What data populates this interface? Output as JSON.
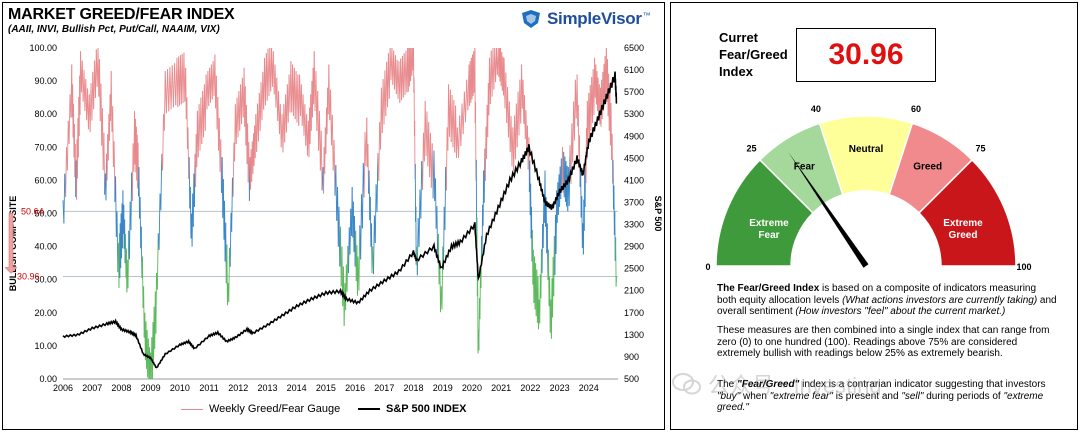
{
  "header": {
    "title": "MARKET GREED/FEAR INDEX",
    "subtitle": "(AAII, INVI, Bullish Pct, Put/Call, NAAIM, VIX)",
    "logo_text": "SimpleVisor",
    "logo_tm": "™"
  },
  "legend": {
    "gauge_label": "Weekly Greed/Fear Gauge",
    "sp500_label": "S&P 500 INDEX"
  },
  "annotations": {
    "level_high": "50.64",
    "level_low": "30.96"
  },
  "chart_data": {
    "type": "line",
    "title": "MARKET GREED/FEAR INDEX",
    "xlabel": "",
    "ylabel_left": "BULLISH COMPOSITE",
    "ylabel_right": "S&P 500",
    "ylim_left": [
      0,
      100
    ],
    "ylim_right": [
      500,
      6500
    ],
    "x_ticks": [
      "2006",
      "2007",
      "2008",
      "2009",
      "2010",
      "2011",
      "2012",
      "2013",
      "2014",
      "2015",
      "2016",
      "2017",
      "2018",
      "2019",
      "2020",
      "2021",
      "2022",
      "2023",
      "2024"
    ],
    "y_ticks_left": [
      "0.00",
      "10.00",
      "20.00",
      "30.00",
      "40.00",
      "50.00",
      "60.00",
      "70.00",
      "80.00",
      "90.00",
      "100.00"
    ],
    "y_ticks_right": [
      "500",
      "900",
      "1300",
      "1700",
      "2100",
      "2500",
      "2900",
      "3300",
      "3700",
      "4100",
      "4500",
      "4900",
      "5300",
      "5700",
      "6100",
      "6500"
    ],
    "horizontal_lines": [
      50.64,
      30.96
    ],
    "series": [
      {
        "name": "Weekly Greed/Fear Gauge",
        "axis": "left",
        "color_above_75": "#e8898c",
        "color_middle": "#3a86c8",
        "color_below_25": "#5cb85c",
        "x": [
          2006.0,
          2006.3,
          2006.45,
          2006.6,
          2006.9,
          2007.2,
          2007.45,
          2007.65,
          2007.9,
          2008.05,
          2008.2,
          2008.45,
          2008.6,
          2008.8,
          2009.0,
          2009.2,
          2009.5,
          2009.9,
          2010.2,
          2010.4,
          2010.6,
          2010.9,
          2011.2,
          2011.45,
          2011.65,
          2011.9,
          2012.2,
          2012.4,
          2012.6,
          2012.9,
          2013.2,
          2013.5,
          2013.8,
          2014.1,
          2014.4,
          2014.6,
          2014.9,
          2015.1,
          2015.4,
          2015.65,
          2015.9,
          2016.1,
          2016.4,
          2016.6,
          2016.9,
          2017.2,
          2017.5,
          2017.8,
          2018.0,
          2018.1,
          2018.4,
          2018.7,
          2018.95,
          2019.2,
          2019.5,
          2019.9,
          2020.1,
          2020.22,
          2020.4,
          2020.6,
          2020.9,
          2021.1,
          2021.4,
          2021.7,
          2021.95,
          2022.1,
          2022.3,
          2022.5,
          2022.7,
          2022.9,
          2023.1,
          2023.3,
          2023.6,
          2023.8,
          2023.95,
          2024.2,
          2024.4,
          2024.6,
          2024.8,
          2024.95
        ],
        "y": [
          50,
          90,
          60,
          92,
          78,
          95,
          58,
          88,
          35,
          50,
          28,
          72,
          60,
          15,
          2,
          25,
          85,
          88,
          90,
          45,
          75,
          85,
          90,
          58,
          25,
          78,
          88,
          60,
          72,
          88,
          95,
          75,
          90,
          85,
          70,
          90,
          60,
          90,
          52,
          22,
          50,
          28,
          75,
          35,
          82,
          95,
          88,
          92,
          100,
          35,
          78,
          62,
          20,
          80,
          72,
          90,
          95,
          8,
          55,
          88,
          99,
          92,
          70,
          88,
          65,
          30,
          20,
          58,
          18,
          50,
          62,
          55,
          88,
          42,
          78,
          90,
          80,
          92,
          70,
          31
        ]
      },
      {
        "name": "S&P 500 INDEX",
        "axis": "right",
        "color": "#000000",
        "x": [
          2006.0,
          2006.5,
          2007.0,
          2007.5,
          2007.8,
          2008.0,
          2008.3,
          2008.5,
          2008.75,
          2009.0,
          2009.2,
          2009.5,
          2010.0,
          2010.3,
          2010.5,
          2011.0,
          2011.3,
          2011.6,
          2011.9,
          2012.3,
          2012.5,
          2013.0,
          2013.5,
          2014.0,
          2014.5,
          2015.0,
          2015.5,
          2015.7,
          2016.1,
          2016.5,
          2017.0,
          2017.5,
          2018.0,
          2018.1,
          2018.7,
          2018.95,
          2019.3,
          2019.6,
          2020.1,
          2020.22,
          2020.5,
          2020.9,
          2021.3,
          2021.7,
          2021.95,
          2022.3,
          2022.5,
          2022.75,
          2023.0,
          2023.3,
          2023.6,
          2023.8,
          2024.0,
          2024.3,
          2024.6,
          2024.9,
          2024.95
        ],
        "y": [
          1270,
          1300,
          1420,
          1500,
          1540,
          1400,
          1350,
          1290,
          950,
          880,
          700,
          950,
          1120,
          1180,
          1050,
          1280,
          1340,
          1180,
          1250,
          1400,
          1330,
          1480,
          1650,
          1820,
          1950,
          2060,
          2090,
          1950,
          1880,
          2100,
          2280,
          2450,
          2800,
          2650,
          2900,
          2500,
          2900,
          2980,
          3300,
          2300,
          3100,
          3600,
          4100,
          4450,
          4700,
          4100,
          3700,
          3600,
          3900,
          4100,
          4500,
          4200,
          4800,
          5200,
          5600,
          6000,
          5500
        ]
      }
    ],
    "legend_position": "bottom"
  },
  "gauge": {
    "reading_label_line1": "Curret",
    "reading_label_line2": "Fear/Greed",
    "reading_label_line3": "Index",
    "reading_value": "30.96",
    "value": 30.96,
    "segments": [
      {
        "label_line1": "Extreme",
        "label_line2": "Fear",
        "from": 0,
        "to": 25,
        "color": "#3f9a3b"
      },
      {
        "label_line1": "Fear",
        "label_line2": "",
        "from": 25,
        "to": 40,
        "color": "#a5d99b"
      },
      {
        "label_line1": "Neutral",
        "label_line2": "",
        "from": 40,
        "to": 60,
        "color": "#ffff99"
      },
      {
        "label_line1": "Greed",
        "label_line2": "",
        "from": 60,
        "to": 75,
        "color": "#f08a8c"
      },
      {
        "label_line1": "Extreme",
        "label_line2": "Greed",
        "from": 75,
        "to": 100,
        "color": "#c8161b"
      }
    ],
    "tick_labels": [
      "0",
      "25",
      "40",
      "60",
      "75",
      "100"
    ]
  },
  "description": {
    "p1_bold": "The Fear/Greed Index",
    "p1_rest": " is based on a composite of indicators measuring both equity allocation levels ",
    "p1_italic1": "(What actions investors are currently taking)",
    "p1_mid": " and overall sentiment ",
    "p1_italic2": "(How investors \"feel\" about the current market.)",
    "p2": "These measures are then combined into a single index that can range from zero (0) to one hundred (100). Readings above 75% are considered extremely bullish with readings below 25% as extremely bearish.",
    "p3_a": "The ",
    "p3_b": "\"Fear/Greed\"",
    "p3_c": " index is a contrarian indicator suggesting that investors ",
    "p3_d": "\"buy\"",
    "p3_e": " when ",
    "p3_f": "\"extreme fear\"",
    "p3_g": " is present and ",
    "p3_h": "\"sell\"",
    "p3_i": " during periods of ",
    "p3_j": "\"extreme greed.\""
  },
  "watermark": {
    "text": "公众号 · Investing"
  }
}
